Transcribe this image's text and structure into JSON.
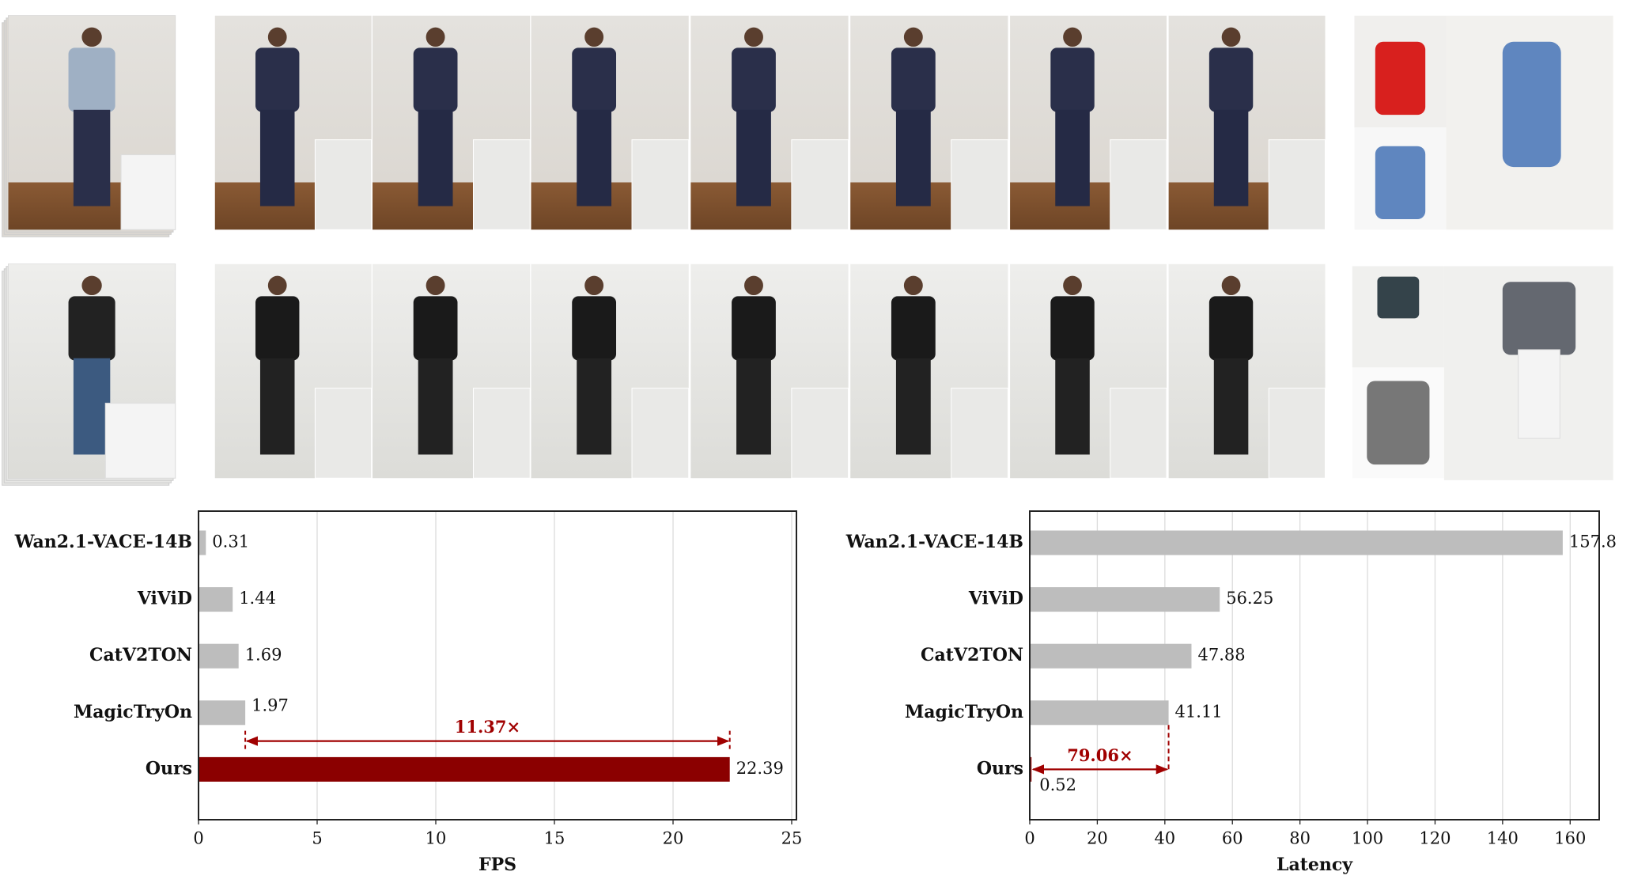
{
  "chart_data": [
    {
      "type": "bar",
      "orientation": "horizontal",
      "categories": [
        "Wan2.1-VACE-14B",
        "ViViD",
        "CatV2TON",
        "MagicTryOn",
        "Ours"
      ],
      "values": [
        0.31,
        1.44,
        1.69,
        1.97,
        22.39
      ],
      "colors": [
        "#bdbdbd",
        "#bdbdbd",
        "#bdbdbd",
        "#bdbdbd",
        "#8b0000"
      ],
      "xlabel": "FPS",
      "xlim": [
        0,
        25.2
      ],
      "xticks": [
        0,
        5,
        10,
        15,
        20,
        25
      ],
      "grid": true,
      "annotation": "11.37×"
    },
    {
      "type": "bar",
      "orientation": "horizontal",
      "categories": [
        "Wan2.1-VACE-14B",
        "ViViD",
        "CatV2TON",
        "MagicTryOn",
        "Ours"
      ],
      "values": [
        157.8,
        56.25,
        47.88,
        41.11,
        0.52
      ],
      "colors": [
        "#bdbdbd",
        "#bdbdbd",
        "#bdbdbd",
        "#bdbdbd",
        "#8b0000"
      ],
      "xlabel": "Latency",
      "xlim": [
        0,
        168.6
      ],
      "xticks": [
        0,
        20,
        40,
        60,
        80,
        100,
        120,
        140,
        160
      ],
      "grid": true,
      "annotation": "79.06×"
    }
  ]
}
